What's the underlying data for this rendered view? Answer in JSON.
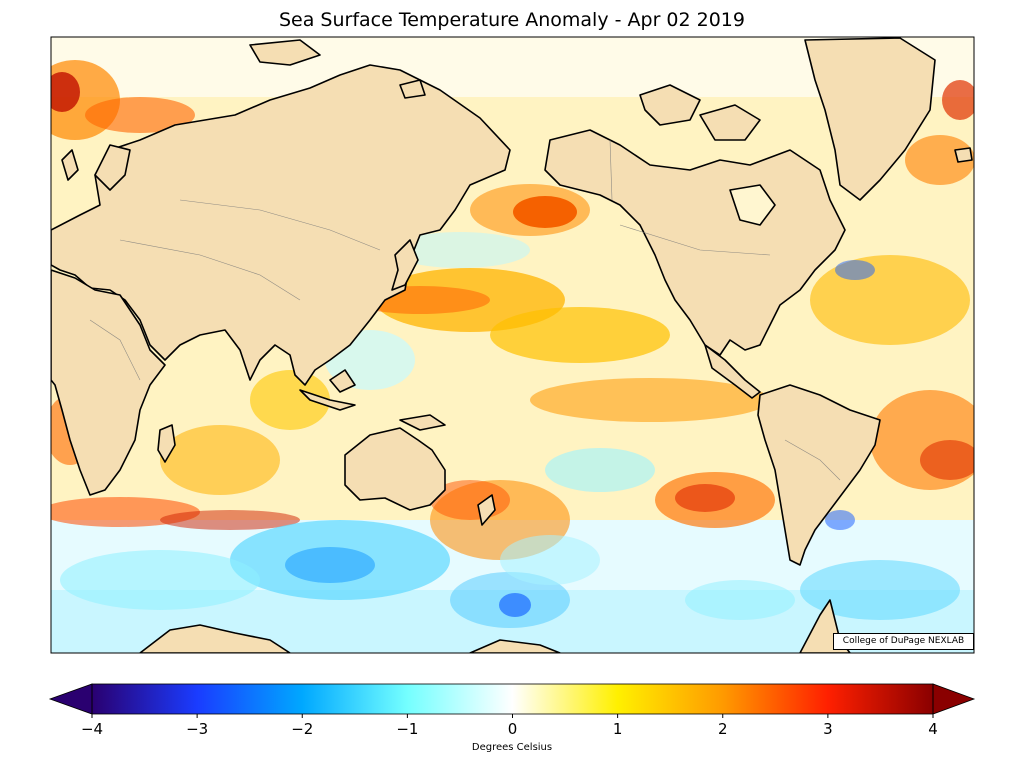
{
  "title": "Sea Surface Temperature Anomaly - Apr 02 2019",
  "credit": "College of DuPage NEXLAB",
  "colorbar": {
    "label": "Degrees Celsius",
    "min": -4,
    "max": 4,
    "ticks": [
      "−4",
      "−3",
      "−2",
      "−1",
      "0",
      "1",
      "2",
      "3",
      "4"
    ],
    "tick_values": [
      -4,
      -3,
      -2,
      -1,
      0,
      1,
      2,
      3,
      4
    ],
    "colors": [
      "#2a0070",
      "#1a3cff",
      "#00a8ff",
      "#74ffff",
      "#ffffff",
      "#fff000",
      "#ff9a00",
      "#ff2000",
      "#8a0000"
    ]
  },
  "land_color": "#f5deb3",
  "map_projection": "Equirectangular, Pacific-centered",
  "map_extent": {
    "lon": [
      0,
      360
    ],
    "lat": [
      -78,
      90
    ]
  }
}
